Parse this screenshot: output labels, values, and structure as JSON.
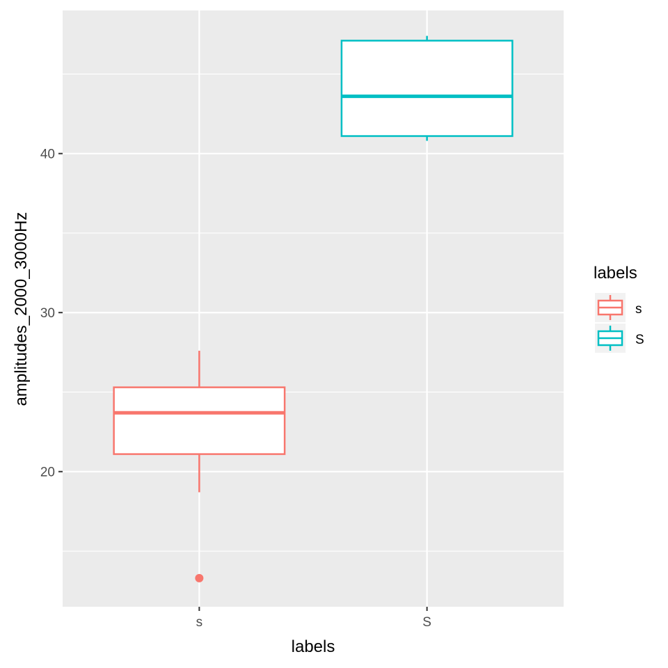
{
  "chart_data": {
    "type": "boxplot",
    "xlabel": "labels",
    "ylabel": "amplitudes_2000_3000Hz",
    "ylim": [
      11.5,
      49.0
    ],
    "y_ticks": [
      20,
      30,
      40
    ],
    "grid": true,
    "legend": {
      "title": "labels",
      "placement": "right",
      "entries": [
        "s",
        "S"
      ]
    },
    "categories": [
      "s",
      "S"
    ],
    "boxes": [
      {
        "category": "s",
        "color": "#F8766D",
        "whisker_low": 18.7,
        "q1": 21.1,
        "median": 23.7,
        "q3": 25.3,
        "whisker_high": 27.6,
        "outliers": [
          13.3
        ]
      },
      {
        "category": "S",
        "color": "#00BFC4",
        "whisker_low": 40.8,
        "q1": 41.1,
        "median": 43.6,
        "q3": 47.1,
        "whisker_high": 47.4,
        "outliers": []
      }
    ]
  }
}
